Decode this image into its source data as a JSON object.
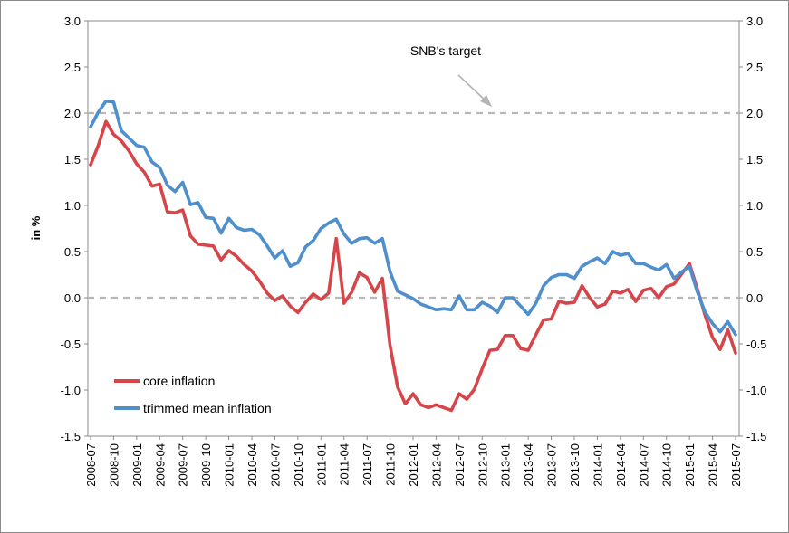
{
  "chart_data": {
    "type": "line",
    "title": "",
    "xlabel": "",
    "ylabel": "in %",
    "ylim": [
      -1.5,
      3.0
    ],
    "y_ticks": [
      "3.0",
      "2.5",
      "2.0",
      "1.5",
      "1.0",
      "0.5",
      "0.0",
      "-0.5",
      "-1.0",
      "-1.5"
    ],
    "y_ticks_right": [
      "3.0",
      "2.5",
      "2.0",
      "1.5",
      "1.0",
      "0.5",
      "0.0",
      "-0.5",
      "-1.0",
      "-1.5"
    ],
    "x_tick_labels": [
      "2008-07",
      "2008-10",
      "2009-01",
      "2009-04",
      "2009-07",
      "2009-10",
      "2010-01",
      "2010-04",
      "2010-07",
      "2010-10",
      "2011-01",
      "2011-04",
      "2011-07",
      "2011-10",
      "2012-01",
      "2012-04",
      "2012-07",
      "2012-10",
      "2013-01",
      "2013-04",
      "2013-07",
      "2013-10",
      "2014-01",
      "2014-04",
      "2014-07",
      "2014-10",
      "2015-01",
      "2015-04",
      "2015-07"
    ],
    "annotation": "SNB's target",
    "reference_lines": [
      2.0,
      0.0
    ],
    "legend_position": "bottom-left",
    "series": [
      {
        "name": "core inflation",
        "color": "#d6454a",
        "values": [
          1.44,
          1.65,
          1.91,
          1.77,
          1.7,
          1.59,
          1.45,
          1.36,
          1.21,
          1.23,
          0.93,
          0.92,
          0.95,
          0.67,
          0.58,
          0.57,
          0.56,
          0.41,
          0.51,
          0.45,
          0.36,
          0.29,
          0.18,
          0.05,
          -0.03,
          0.02,
          -0.09,
          -0.16,
          -0.05,
          0.04,
          -0.02,
          0.05,
          0.64,
          -0.06,
          0.06,
          0.27,
          0.22,
          0.06,
          0.21,
          -0.52,
          -0.97,
          -1.15,
          -1.04,
          -1.16,
          -1.19,
          -1.16,
          -1.19,
          -1.22,
          -1.04,
          -1.1,
          -0.99,
          -0.77,
          -0.57,
          -0.56,
          -0.41,
          -0.41,
          -0.55,
          -0.57,
          -0.4,
          -0.24,
          -0.23,
          -0.04,
          -0.06,
          -0.05,
          0.13,
          0.0,
          -0.1,
          -0.07,
          0.07,
          0.05,
          0.09,
          -0.04,
          0.08,
          0.1,
          0.0,
          0.12,
          0.15,
          0.26,
          0.37,
          0.1,
          -0.18,
          -0.43,
          -0.56,
          -0.35,
          -0.6
        ]
      },
      {
        "name": "trimmed mean inflation",
        "color": "#4f8fcc",
        "values": [
          1.85,
          2.01,
          2.13,
          2.12,
          1.81,
          1.73,
          1.65,
          1.63,
          1.47,
          1.41,
          1.22,
          1.15,
          1.25,
          1.01,
          1.03,
          0.87,
          0.86,
          0.7,
          0.86,
          0.76,
          0.73,
          0.74,
          0.68,
          0.56,
          0.43,
          0.51,
          0.34,
          0.38,
          0.55,
          0.62,
          0.75,
          0.81,
          0.85,
          0.69,
          0.59,
          0.64,
          0.65,
          0.59,
          0.64,
          0.28,
          0.07,
          0.03,
          -0.01,
          -0.07,
          -0.1,
          -0.13,
          -0.12,
          -0.13,
          0.02,
          -0.13,
          -0.13,
          -0.05,
          -0.09,
          -0.16,
          0.0,
          0.0,
          -0.09,
          -0.18,
          -0.06,
          0.13,
          0.22,
          0.25,
          0.25,
          0.21,
          0.34,
          0.39,
          0.43,
          0.37,
          0.5,
          0.46,
          0.48,
          0.37,
          0.37,
          0.33,
          0.3,
          0.36,
          0.21,
          0.28,
          0.34,
          0.07,
          -0.15,
          -0.28,
          -0.37,
          -0.26,
          -0.4
        ]
      }
    ]
  }
}
